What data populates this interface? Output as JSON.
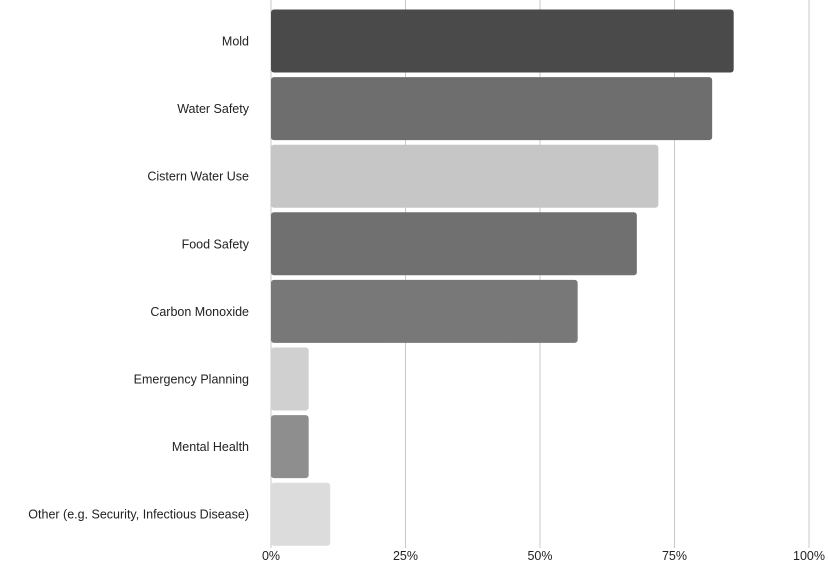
{
  "chart_data": {
    "type": "bar",
    "orientation": "horizontal",
    "title": "",
    "xlabel": "",
    "ylabel": "",
    "categories": [
      "Mold",
      "Water Safety",
      "Cistern Water Use",
      "Food Safety",
      "Carbon Monoxide",
      "Emergency  Planning",
      "Mental Health",
      "Other (e.g. Security, Infectious Disease)"
    ],
    "values": [
      86,
      82,
      72,
      68,
      57,
      7,
      7,
      11
    ],
    "unit": "%",
    "xlim": [
      0,
      100
    ],
    "xticks": [
      0,
      25,
      50,
      75,
      100
    ],
    "xtick_labels": [
      "0%",
      "25%",
      "50%",
      "75%",
      "100%"
    ],
    "bar_colors": [
      "#4a4a4a",
      "#6e6e6e",
      "#c6c6c6",
      "#707070",
      "#787878",
      "#d0d0d0",
      "#8e8e8e",
      "#dcdcdc"
    ],
    "grid": "vertical",
    "legend": "none"
  }
}
